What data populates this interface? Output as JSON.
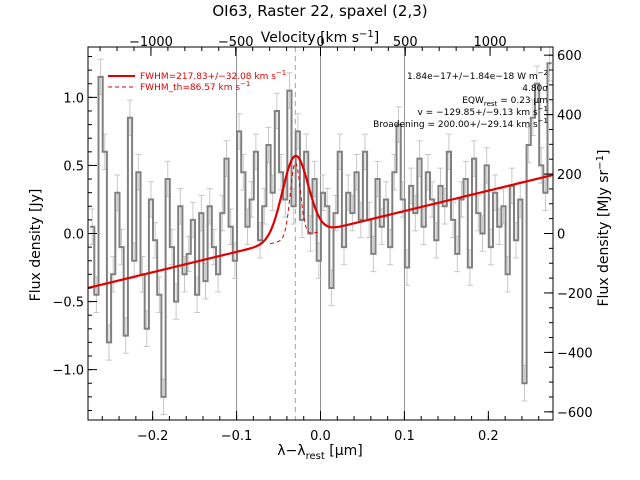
{
  "chart_data": {
    "type": "line",
    "title": "OI63, Raster 22, spaxel (2,3)",
    "xlabel": "λ−λ",
    "xlabel_sub": "rest",
    "xlabel_unit": " [μm]",
    "ylabel": "Flux density [Jy]",
    "x2label": "Velocity [km s",
    "x2label_sup": "−1",
    "x2label_end": "]",
    "y2label": "Flux density [MJy sr",
    "y2label_sup": "−1",
    "y2label_end": "]",
    "xlim": [
      -0.277,
      0.277
    ],
    "ylim": [
      -1.37,
      1.37
    ],
    "xticks": [
      -0.2,
      -0.1,
      0.0,
      0.1,
      0.2
    ],
    "xtick_labels": [
      "−0.2",
      "−0.1",
      "0.0",
      "0.1",
      "0.2"
    ],
    "yticks": [
      -1.0,
      -0.5,
      0.0,
      0.5,
      1.0
    ],
    "ytick_labels": [
      "−1.0",
      "−0.5",
      "0.0",
      "0.5",
      "1.0"
    ],
    "velocity_ticks": [
      -1000,
      -500,
      0,
      500,
      1000
    ],
    "velocity_tick_labels": [
      "−1000",
      "−500",
      "0",
      "500",
      "1000"
    ],
    "velocity_per_micron": 4950,
    "right_ticks": [
      -600,
      -400,
      -200,
      0,
      200,
      400,
      600
    ],
    "right_tick_labels": [
      "−600",
      "−400",
      "−200",
      "0",
      "200",
      "400",
      "600"
    ],
    "right_per_jy": 458,
    "vlines_solid": [
      -0.1,
      0.0,
      0.1
    ],
    "vline_dashed": -0.03,
    "series": [
      {
        "kind": "data-steps",
        "x": [
          -0.272,
          -0.267,
          -0.262,
          -0.257,
          -0.252,
          -0.247,
          -0.242,
          -0.237,
          -0.232,
          -0.227,
          -0.222,
          -0.217,
          -0.212,
          -0.207,
          -0.202,
          -0.197,
          -0.192,
          -0.187,
          -0.182,
          -0.177,
          -0.172,
          -0.167,
          -0.162,
          -0.157,
          -0.152,
          -0.147,
          -0.142,
          -0.137,
          -0.132,
          -0.127,
          -0.122,
          -0.117,
          -0.112,
          -0.107,
          -0.102,
          -0.097,
          -0.092,
          -0.087,
          -0.082,
          -0.077,
          -0.072,
          -0.067,
          -0.062,
          -0.057,
          -0.052,
          -0.047,
          -0.042,
          -0.037,
          -0.032,
          -0.027,
          -0.022,
          -0.017,
          -0.012,
          -0.007,
          -0.002,
          0.003,
          0.008,
          0.013,
          0.018,
          0.023,
          0.028,
          0.033,
          0.038,
          0.043,
          0.048,
          0.053,
          0.058,
          0.063,
          0.068,
          0.073,
          0.078,
          0.083,
          0.088,
          0.093,
          0.098,
          0.103,
          0.108,
          0.113,
          0.118,
          0.123,
          0.128,
          0.133,
          0.138,
          0.143,
          0.148,
          0.153,
          0.158,
          0.163,
          0.168,
          0.173,
          0.178,
          0.183,
          0.188,
          0.193,
          0.198,
          0.203,
          0.208,
          0.213,
          0.218,
          0.223,
          0.228,
          0.233,
          0.238,
          0.243,
          0.248,
          0.253,
          0.258,
          0.263,
          0.268,
          0.273
        ],
        "y": [
          0.05,
          -0.45,
          1.15,
          0.6,
          -0.8,
          -0.3,
          0.3,
          -0.1,
          -0.75,
          0.85,
          -0.2,
          0.45,
          -0.3,
          -0.7,
          0.25,
          -0.05,
          -0.45,
          -1.2,
          0.4,
          -0.1,
          -0.5,
          0.2,
          -0.3,
          -0.15,
          0.1,
          -0.45,
          0.15,
          -0.35,
          0.2,
          -0.1,
          -0.3,
          0.15,
          0.55,
          0.05,
          -0.2,
          0.75,
          0.45,
          0.05,
          0.25,
          0.6,
          -0.05,
          0.2,
          0.65,
          0.3,
          0.9,
          0.45,
          0.25,
          1.05,
          0.2,
          0.75,
          0.1,
          0.6,
          0.0,
          0.4,
          -0.2,
          0.3,
          0.2,
          -0.4,
          0.15,
          0.6,
          -0.1,
          0.3,
          0.15,
          0.45,
          0.1,
          0.6,
          0.1,
          -0.15,
          0.4,
          0.05,
          0.25,
          -0.1,
          0.45,
          0.8,
          0.25,
          -0.25,
          0.35,
          0.15,
          0.55,
          0.05,
          0.45,
          0.25,
          -0.05,
          0.35,
          0.2,
          0.6,
          0.1,
          -0.15,
          0.25,
          0.4,
          -0.25,
          0.55,
          0.15,
          0.0,
          0.5,
          -0.1,
          0.3,
          0.05,
          0.2,
          -0.3,
          0.35,
          -0.05,
          0.25,
          -1.1,
          0.65,
          0.85,
          1.1,
          0.5,
          0.3,
          1.25
        ],
        "yerr": 0.13
      },
      {
        "kind": "fit-total",
        "continuum_at_xmin": -0.4,
        "continuum_at_xmax": 0.43,
        "peak_center": -0.03,
        "peak_amplitude": 0.6,
        "peak_sigma": 0.0153
      },
      {
        "kind": "fit-theoretical",
        "peak_center": -0.03,
        "peak_amplitude": 0.55,
        "peak_sigma": 0.006
      }
    ],
    "legend": [
      {
        "style": "solid",
        "label": "FWHM=217.83+/−32.08 km s",
        "sup": "−1"
      },
      {
        "style": "dashed",
        "label": "FWHM_th=86.57 km s",
        "sup": "−1"
      }
    ],
    "annotations": [
      {
        "text": "1.84e−17+/−1.84e−18 W m",
        "sup": "−2"
      },
      {
        "text": "4.80σ"
      },
      {
        "text": "EQW",
        "sub": "rest",
        "tail": " = 0.23 μm"
      },
      {
        "text": "v = −129.85+/−9.13 km s",
        "sup": "−1"
      },
      {
        "text": "Broadening = 200.00+/−29.14 km s",
        "sup": "−1"
      }
    ],
    "colors": {
      "data": "#808080",
      "errorbars": "#c8c8c8",
      "fit": "#e00000",
      "axes": "#000000",
      "vlines": "#909090"
    }
  }
}
